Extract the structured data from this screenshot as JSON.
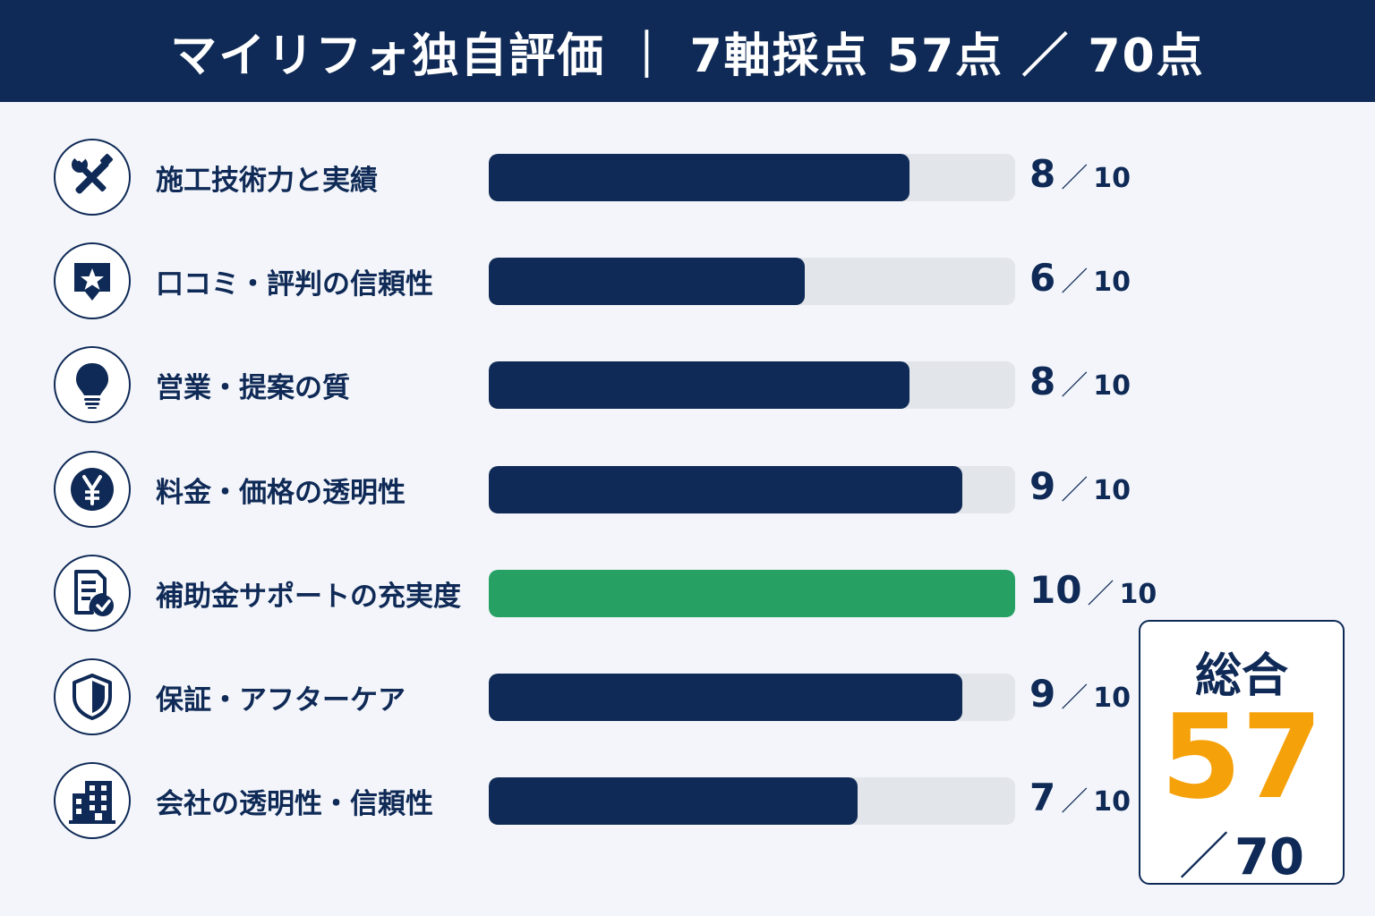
{
  "header": {
    "title": "マイリフォ独自評価 ｜ 7軸採点 57点 ／ 70点"
  },
  "chart_data": {
    "type": "bar",
    "orientation": "horizontal",
    "categories": [
      "施工技術力と実績",
      "口コミ・評判の信頼性",
      "営業・提案の質",
      "料金・価格の透明性",
      "補助金サポートの充実度",
      "保証・アフターケア",
      "会社の透明性・信頼性"
    ],
    "values": [
      8,
      6,
      8,
      9,
      10,
      9,
      7
    ],
    "max": 10,
    "xlim": [
      0,
      10
    ],
    "icons": [
      "tools-icon",
      "review-star-icon",
      "lightbulb-icon",
      "yen-icon",
      "document-check-icon",
      "shield-icon",
      "building-icon"
    ],
    "score_separator": "／",
    "colors": {
      "bar": "#0f2a56",
      "bar_full": "#26a063",
      "track": "#e2e5ea"
    }
  },
  "total": {
    "label": "総合",
    "value": "57",
    "separator": "／",
    "max": "70",
    "color": "#f5a10a"
  }
}
